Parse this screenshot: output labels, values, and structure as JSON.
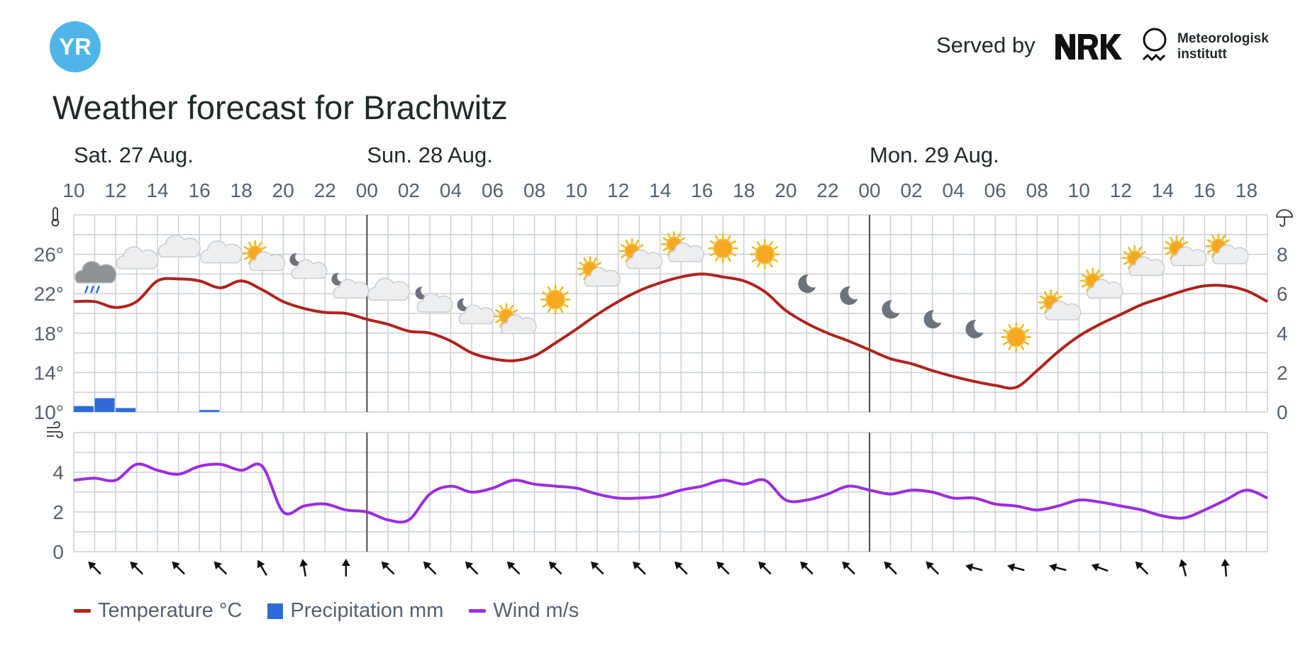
{
  "header": {
    "served_by": "Served by",
    "met_line1": "Meteorologisk",
    "met_line2": "institutt",
    "brand_color": "#4fb5e6"
  },
  "title": "Weather forecast for Brachwitz",
  "legend": {
    "temperature": "Temperature °C",
    "precipitation": "Precipitation mm",
    "wind": "Wind m/s"
  },
  "colors": {
    "temperature": "#b1221b",
    "precipitation": "#2e6bd8",
    "wind": "#9b2ce0",
    "grid": "#c9d0d6",
    "day_separator": "#4a4a4a",
    "arrow": "#111111"
  },
  "chart_data": {
    "type": "line",
    "title": "Weather forecast for Brachwitz",
    "days": [
      {
        "label": "Sat. 27 Aug.",
        "start_hour_index": 0
      },
      {
        "label": "Sun. 28 Aug.",
        "start_hour_index": 14
      },
      {
        "label": "Mon. 29 Aug.",
        "start_hour_index": 38
      }
    ],
    "x_tick_labels": [
      "10",
      "12",
      "14",
      "16",
      "18",
      "20",
      "22",
      "00",
      "02",
      "04",
      "06",
      "08",
      "10",
      "12",
      "14",
      "16",
      "18",
      "20",
      "22",
      "00",
      "02",
      "04",
      "06",
      "08",
      "10",
      "12",
      "14",
      "16",
      "18"
    ],
    "x_start": "2022-08-27T10:00",
    "x_end": "2022-08-29T19:00",
    "temperature_panel": {
      "y_left_ticks": [
        "10°",
        "14°",
        "18°",
        "22°",
        "26°"
      ],
      "y_left_range": [
        10,
        30
      ],
      "y_right_ticks": [
        "0",
        "2",
        "4",
        "6",
        "8"
      ],
      "y_right_range": [
        0,
        10
      ],
      "series": [
        {
          "name": "Temperature °C",
          "hours": [
            10,
            11,
            12,
            13,
            14,
            15,
            16,
            17,
            18,
            19,
            20,
            21,
            22,
            23,
            24,
            25,
            26,
            27,
            28,
            29,
            30,
            31,
            32,
            33,
            34,
            35,
            36,
            37,
            38,
            39,
            40,
            41,
            42,
            43,
            44,
            45,
            46,
            47,
            48,
            49,
            50,
            51,
            52,
            53,
            54,
            55,
            56,
            57,
            58,
            59,
            60,
            61,
            62,
            63,
            64,
            65,
            66,
            67
          ],
          "values": [
            21.2,
            21.2,
            20.6,
            21.2,
            23.3,
            23.5,
            23.3,
            22.6,
            23.3,
            22.4,
            21.2,
            20.5,
            20.1,
            20.0,
            19.4,
            18.9,
            18.2,
            18.0,
            17.2,
            16.0,
            15.4,
            15.2,
            15.7,
            17.0,
            18.4,
            19.9,
            21.2,
            22.3,
            23.1,
            23.7,
            24.0,
            23.7,
            23.3,
            22.2,
            20.3,
            19.0,
            18.0,
            17.2,
            16.3,
            15.4,
            14.9,
            14.2,
            13.6,
            13.1,
            12.7,
            12.5,
            14.2,
            16.1,
            17.7,
            18.9,
            19.9,
            20.9,
            21.6,
            22.3,
            22.8,
            22.8,
            22.3,
            21.2
          ]
        },
        {
          "name": "Precipitation mm",
          "hours": [
            10,
            11,
            12,
            16
          ],
          "values": [
            0.3,
            0.7,
            0.2,
            0.1
          ]
        }
      ],
      "weather_symbols": [
        {
          "hour": 11,
          "symbol": "rain"
        },
        {
          "hour": 13,
          "symbol": "cloudy"
        },
        {
          "hour": 15,
          "symbol": "cloudy"
        },
        {
          "hour": 17,
          "symbol": "cloudy"
        },
        {
          "hour": 19,
          "symbol": "partly-cloudy-day"
        },
        {
          "hour": 21,
          "symbol": "partly-cloudy-night"
        },
        {
          "hour": 23,
          "symbol": "partly-cloudy-night"
        },
        {
          "hour": 25,
          "symbol": "cloudy"
        },
        {
          "hour": 27,
          "symbol": "partly-cloudy-night"
        },
        {
          "hour": 29,
          "symbol": "partly-cloudy-night"
        },
        {
          "hour": 31,
          "symbol": "partly-cloudy-day"
        },
        {
          "hour": 33,
          "symbol": "clear-sky-day"
        },
        {
          "hour": 35,
          "symbol": "partly-cloudy-day"
        },
        {
          "hour": 37,
          "symbol": "partly-cloudy-day"
        },
        {
          "hour": 39,
          "symbol": "partly-cloudy-day"
        },
        {
          "hour": 41,
          "symbol": "clear-sky-day"
        },
        {
          "hour": 43,
          "symbol": "clear-sky-day"
        },
        {
          "hour": 45,
          "symbol": "clear-sky-night"
        },
        {
          "hour": 47,
          "symbol": "clear-sky-night"
        },
        {
          "hour": 49,
          "symbol": "clear-sky-night"
        },
        {
          "hour": 51,
          "symbol": "clear-sky-night"
        },
        {
          "hour": 53,
          "symbol": "clear-sky-night"
        },
        {
          "hour": 55,
          "symbol": "clear-sky-day"
        },
        {
          "hour": 57,
          "symbol": "partly-cloudy-day"
        },
        {
          "hour": 59,
          "symbol": "partly-cloudy-day"
        },
        {
          "hour": 61,
          "symbol": "partly-cloudy-day"
        },
        {
          "hour": 63,
          "symbol": "partly-cloudy-day"
        },
        {
          "hour": 65,
          "symbol": "partly-cloudy-day"
        }
      ],
      "symbol_temperatures": [
        23.8,
        25.4,
        26.6,
        26.0,
        25.4,
        24.6,
        22.6,
        22.2,
        21.2,
        20.0,
        19.0,
        21.4,
        23.8,
        25.6,
        26.3,
        26.6,
        26.0,
        23.0,
        21.8,
        20.4,
        19.4,
        18.4,
        17.6,
        20.4,
        22.6,
        24.9,
        25.9,
        26.1
      ],
      "grid": true
    },
    "wind_panel": {
      "y_ticks": [
        "0",
        "2",
        "4"
      ],
      "y_range": [
        0,
        6
      ],
      "series": [
        {
          "name": "Wind m/s",
          "hours": [
            10,
            11,
            12,
            13,
            14,
            15,
            16,
            17,
            18,
            19,
            20,
            21,
            22,
            23,
            24,
            25,
            26,
            27,
            28,
            29,
            30,
            31,
            32,
            33,
            34,
            35,
            36,
            37,
            38,
            39,
            40,
            41,
            42,
            43,
            44,
            45,
            46,
            47,
            48,
            49,
            50,
            51,
            52,
            53,
            54,
            55,
            56,
            57,
            58,
            59,
            60,
            61,
            62,
            63,
            64,
            65,
            66,
            67
          ],
          "values": [
            3.6,
            3.7,
            3.6,
            4.4,
            4.1,
            3.9,
            4.3,
            4.4,
            4.1,
            4.3,
            2.0,
            2.3,
            2.4,
            2.1,
            2.0,
            1.6,
            1.6,
            2.9,
            3.3,
            3.0,
            3.2,
            3.6,
            3.4,
            3.3,
            3.2,
            2.9,
            2.7,
            2.7,
            2.8,
            3.1,
            3.3,
            3.6,
            3.4,
            3.6,
            2.6,
            2.6,
            2.9,
            3.3,
            3.1,
            2.9,
            3.1,
            3.0,
            2.7,
            2.7,
            2.4,
            2.3,
            2.1,
            2.3,
            2.6,
            2.5,
            2.3,
            2.1,
            1.8,
            1.7,
            2.1,
            2.6,
            3.1,
            2.7
          ]
        }
      ],
      "wind_directions_deg": [
        315,
        315,
        315,
        315,
        330,
        350,
        360,
        315,
        315,
        315,
        315,
        315,
        315,
        315,
        315,
        315,
        315,
        315,
        315,
        315,
        315,
        285,
        285,
        285,
        290,
        315,
        345,
        355
      ],
      "grid": true
    }
  }
}
